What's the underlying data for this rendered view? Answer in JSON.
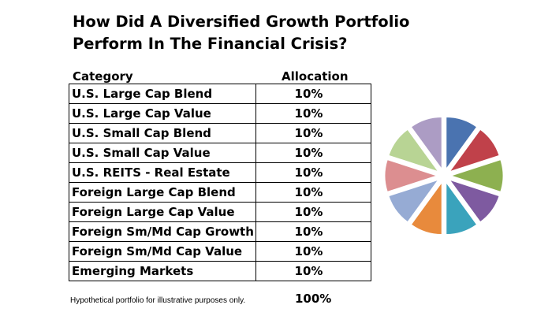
{
  "title_line1": "How Did A Diversified Growth Portfolio",
  "title_line2": "Perform In The Financial Crisis?",
  "header_category": "Category",
  "header_allocation": "Allocation",
  "footnote": "Hypothetical portfolio for illustrative purposes only.",
  "total": "100%",
  "rows": [
    {
      "category": "U.S. Large Cap Blend",
      "allocation": "10%"
    },
    {
      "category": "U.S. Large Cap Value",
      "allocation": "10%"
    },
    {
      "category": "U.S. Small Cap Blend",
      "allocation": "10%"
    },
    {
      "category": "U.S. Small Cap Value",
      "allocation": "10%"
    },
    {
      "category": "U.S. REITS - Real Estate",
      "allocation": "10%"
    },
    {
      "category": "Foreign Large Cap Blend",
      "allocation": "10%"
    },
    {
      "category": "Foreign Large Cap Value",
      "allocation": "10%"
    },
    {
      "category": "Foreign Sm/Md Cap Growth",
      "allocation": "10%"
    },
    {
      "category": "Foreign Sm/Md Cap Value",
      "allocation": "10%"
    },
    {
      "category": "Emerging Markets",
      "allocation": "10%"
    }
  ],
  "chart_data": {
    "type": "pie",
    "exploded": true,
    "categories": [
      "U.S. Large Cap Blend",
      "U.S. Large Cap Value",
      "U.S. Small Cap Blend",
      "U.S. Small Cap Value",
      "U.S. REITS - Real Estate",
      "Foreign Large Cap Blend",
      "Foreign Large Cap Value",
      "Foreign Sm/Md Cap Growth",
      "Foreign Sm/Md Cap Value",
      "Emerging Markets"
    ],
    "values": [
      10,
      10,
      10,
      10,
      10,
      10,
      10,
      10,
      10,
      10
    ],
    "colors": [
      "#4a73b0",
      "#c0414a",
      "#8db050",
      "#7e5aa0",
      "#3aa3bc",
      "#e88a3c",
      "#96abd4",
      "#dc8e90",
      "#b8d494",
      "#ac9cc4"
    ],
    "legend": "none"
  }
}
